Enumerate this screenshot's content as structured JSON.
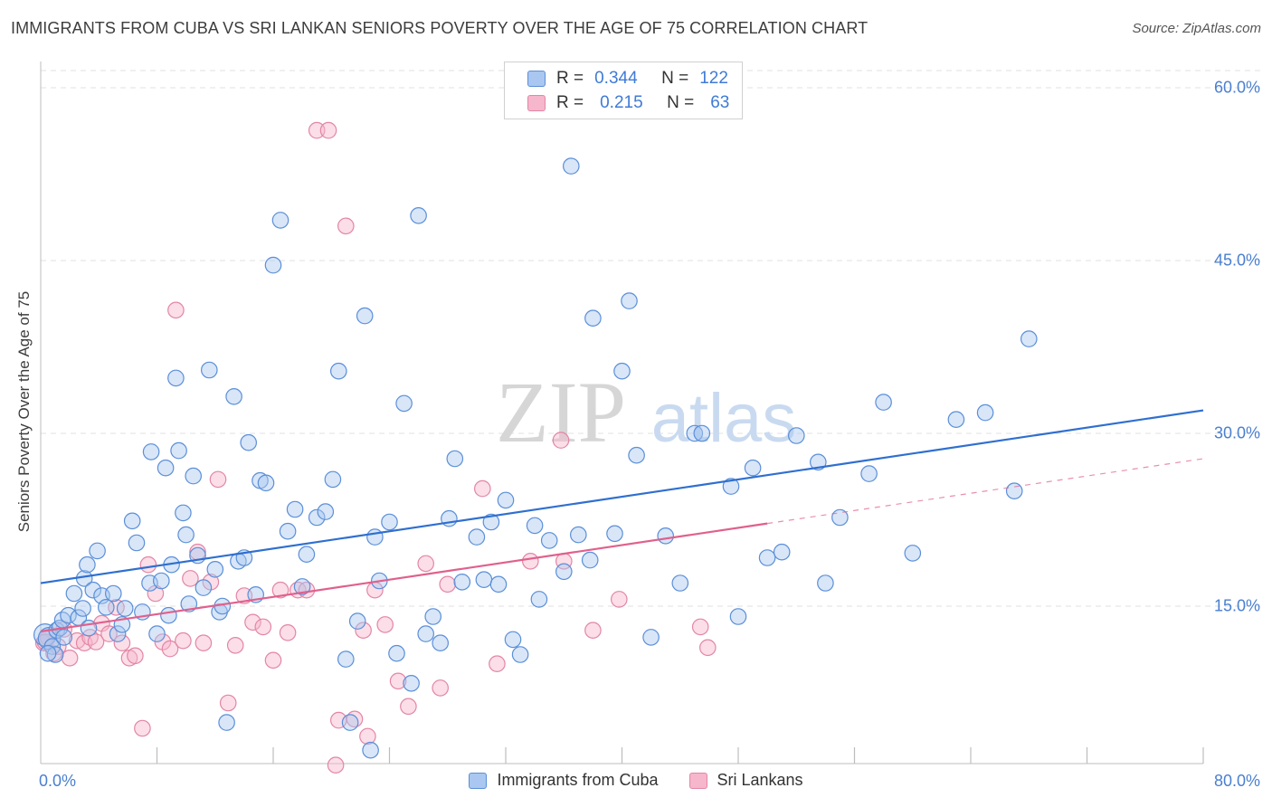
{
  "header": {
    "title": "IMMIGRANTS FROM CUBA VS SRI LANKAN SENIORS POVERTY OVER THE AGE OF 75 CORRELATION CHART",
    "source": "Source: ZipAtlas.com"
  },
  "watermark": {
    "part1": "ZIP",
    "part2": "atlas"
  },
  "legend": {
    "series1": {
      "r_label": "R =",
      "r_value": "0.344",
      "n_label": "N =",
      "n_value": "122"
    },
    "series2": {
      "r_label": "R =",
      "r_value": "0.215",
      "n_label": "N =",
      "n_value": "63"
    }
  },
  "colors": {
    "blue_fill": "#a9c7f0",
    "blue_stroke": "#5b8fd8",
    "blue_line": "#2f6fcf",
    "pink_fill": "#f6b6cb",
    "pink_stroke": "#e386a6",
    "pink_line": "#e0608c",
    "axis_text": "#4a7fd0",
    "grid": "#e2e2e2"
  },
  "chart_data": {
    "type": "scatter",
    "title": "IMMIGRANTS FROM CUBA VS SRI LANKAN SENIORS POVERTY OVER THE AGE OF 75 CORRELATION CHART",
    "xlabel": "",
    "ylabel": "Seniors Poverty Over the Age of 75",
    "xlim": [
      0,
      80
    ],
    "ylim": [
      0,
      60
    ],
    "x_tick_labels": [
      "0.0%",
      "80.0%"
    ],
    "y_ticks": [
      15,
      30,
      45,
      60
    ],
    "y_tick_labels": [
      "15.0%",
      "30.0%",
      "45.0%",
      "60.0%"
    ],
    "legend_position": "bottom-center",
    "series": [
      {
        "name": "Immigrants from Cuba",
        "color": "#5b8fd8",
        "r": 0.344,
        "n": 122,
        "trend": {
          "x": [
            0,
            80
          ],
          "y": [
            17.0,
            32.0
          ],
          "dashed_from": null
        },
        "x": [
          0.3,
          0.6,
          0.8,
          1.0,
          1.1,
          1.3,
          1.5,
          1.9,
          2.3,
          2.6,
          2.9,
          3.0,
          3.2,
          3.6,
          3.9,
          4.2,
          4.5,
          5.0,
          5.3,
          5.6,
          6.3,
          6.6,
          7.0,
          7.5,
          7.6,
          8.0,
          8.6,
          8.8,
          9.0,
          9.3,
          9.5,
          9.8,
          10.0,
          10.2,
          10.5,
          10.8,
          11.2,
          11.6,
          12.0,
          12.3,
          12.8,
          13.3,
          13.6,
          14.0,
          14.3,
          14.8,
          15.1,
          15.5,
          16.0,
          16.5,
          17.0,
          17.5,
          18.0,
          18.3,
          19.0,
          19.6,
          20.1,
          20.5,
          21.0,
          21.3,
          21.8,
          22.3,
          23.0,
          23.3,
          24.0,
          24.5,
          25.0,
          25.5,
          26.0,
          26.5,
          27.0,
          27.5,
          28.1,
          28.5,
          29.0,
          30.0,
          30.5,
          31.5,
          32.0,
          32.5,
          33.0,
          34.0,
          34.3,
          35.0,
          36.0,
          36.5,
          37.0,
          38.0,
          39.5,
          40.0,
          40.5,
          41.0,
          42.0,
          43.0,
          44.0,
          45.0,
          47.5,
          48.0,
          49.0,
          50.0,
          51.0,
          52.0,
          53.5,
          54.0,
          55.0,
          57.0,
          58.0,
          60.0,
          63.0,
          65.0,
          67.0,
          68.0,
          0.5,
          1.6,
          3.3,
          5.8,
          8.3,
          12.5,
          22.7,
          31.0,
          37.8,
          45.5
        ],
        "y": [
          12.5,
          12.2,
          11.5,
          10.8,
          12.9,
          13.1,
          13.8,
          14.2,
          16.1,
          14.0,
          14.8,
          17.4,
          18.6,
          16.4,
          19.8,
          15.9,
          14.9,
          16.1,
          12.6,
          13.4,
          22.4,
          20.5,
          14.5,
          17.0,
          28.4,
          12.6,
          27.0,
          14.2,
          18.6,
          34.8,
          28.5,
          23.1,
          21.2,
          15.2,
          26.3,
          19.4,
          16.6,
          35.5,
          18.2,
          14.5,
          4.9,
          33.2,
          18.9,
          19.2,
          29.2,
          16.0,
          25.9,
          25.7,
          44.6,
          48.5,
          21.5,
          23.4,
          16.7,
          19.5,
          22.7,
          23.2,
          26.0,
          35.4,
          10.4,
          4.9,
          13.7,
          40.2,
          21.0,
          17.2,
          22.3,
          10.9,
          32.6,
          8.3,
          48.9,
          12.6,
          14.1,
          11.8,
          22.6,
          27.8,
          17.1,
          21.0,
          17.3,
          16.9,
          24.2,
          12.1,
          10.8,
          22.0,
          15.6,
          20.7,
          18.0,
          53.2,
          21.2,
          40.0,
          21.3,
          35.4,
          41.5,
          28.1,
          12.3,
          21.1,
          17.0,
          30.0,
          25.4,
          14.1,
          27.0,
          19.2,
          19.7,
          29.8,
          27.5,
          17.0,
          22.7,
          26.5,
          32.7,
          19.6,
          31.2,
          31.8,
          25.0,
          38.2,
          10.9,
          12.3,
          13.1,
          14.8,
          17.2,
          15.0,
          2.5,
          22.3,
          19.0,
          30.0
        ],
        "sizes": [
          14,
          14,
          10,
          10,
          10,
          10,
          10,
          10,
          10,
          10,
          10,
          10,
          10,
          10,
          10,
          10,
          10,
          10,
          10,
          10,
          10,
          10,
          10,
          10,
          10,
          10,
          10,
          10,
          10,
          10,
          10,
          10,
          10,
          10,
          10,
          10,
          10,
          10,
          10,
          10,
          10,
          10,
          10,
          10,
          10,
          10,
          10,
          10,
          10,
          10,
          10,
          10,
          10,
          10,
          10,
          10,
          10,
          10,
          10,
          10,
          10,
          10,
          10,
          10,
          10,
          10,
          10,
          10,
          10,
          10,
          10,
          10,
          10,
          10,
          10,
          10,
          10,
          10,
          10,
          10,
          10,
          10,
          10,
          10,
          10,
          10,
          10,
          10,
          10,
          10,
          10,
          10,
          10,
          10,
          10,
          10,
          10,
          10,
          10,
          10,
          10,
          10,
          10,
          10,
          10,
          10,
          10,
          10,
          10,
          10,
          10,
          10,
          10,
          10,
          10,
          10,
          10,
          10,
          10,
          10,
          10,
          10
        ]
      },
      {
        "name": "Sri Lankans",
        "color": "#e386a6",
        "r": 0.215,
        "n": 63,
        "trend": {
          "x": [
            0,
            80
          ],
          "y": [
            12.8,
            27.8
          ],
          "dashed_from": 50
        },
        "x": [
          0.2,
          0.5,
          0.9,
          1.2,
          1.6,
          2.0,
          2.5,
          3.0,
          3.4,
          3.8,
          4.2,
          4.7,
          5.2,
          5.6,
          6.1,
          6.5,
          7.0,
          7.4,
          7.9,
          8.4,
          8.9,
          9.3,
          9.8,
          10.3,
          10.8,
          11.2,
          11.7,
          12.2,
          12.9,
          13.4,
          14.0,
          14.6,
          15.3,
          16.0,
          16.5,
          17.0,
          17.7,
          18.3,
          19.0,
          19.8,
          20.3,
          21.0,
          21.6,
          22.2,
          23.0,
          23.7,
          24.6,
          25.3,
          26.5,
          27.5,
          28.0,
          30.4,
          31.4,
          33.7,
          35.8,
          36.0,
          38.0,
          39.8,
          45.4,
          45.9,
          20.5,
          22.5,
          0.3
        ],
        "y": [
          11.8,
          12.3,
          10.9,
          11.5,
          13.0,
          10.5,
          12.0,
          11.8,
          12.3,
          11.9,
          13.5,
          12.6,
          14.9,
          11.8,
          10.5,
          10.7,
          4.4,
          18.6,
          16.1,
          11.9,
          11.3,
          40.7,
          12.0,
          17.4,
          19.7,
          11.8,
          17.1,
          26.0,
          6.6,
          11.6,
          15.9,
          13.6,
          13.2,
          10.3,
          16.4,
          12.7,
          16.4,
          16.4,
          56.3,
          56.3,
          1.2,
          48.0,
          5.2,
          12.9,
          16.4,
          13.4,
          8.5,
          6.3,
          18.7,
          7.9,
          16.9,
          25.2,
          10.0,
          18.9,
          29.4,
          18.9,
          12.9,
          15.6,
          13.2,
          11.4,
          5.1,
          3.7,
          11.9
        ],
        "sizes": [
          10,
          10,
          10,
          10,
          10,
          10,
          10,
          10,
          10,
          10,
          10,
          10,
          10,
          10,
          10,
          10,
          10,
          10,
          10,
          10,
          10,
          10,
          10,
          10,
          10,
          10,
          10,
          10,
          10,
          10,
          10,
          10,
          10,
          10,
          10,
          10,
          10,
          10,
          10,
          10,
          10,
          10,
          10,
          10,
          10,
          10,
          10,
          10,
          10,
          10,
          10,
          10,
          10,
          10,
          10,
          10,
          10,
          10,
          10,
          10,
          10,
          10,
          10
        ]
      }
    ]
  }
}
